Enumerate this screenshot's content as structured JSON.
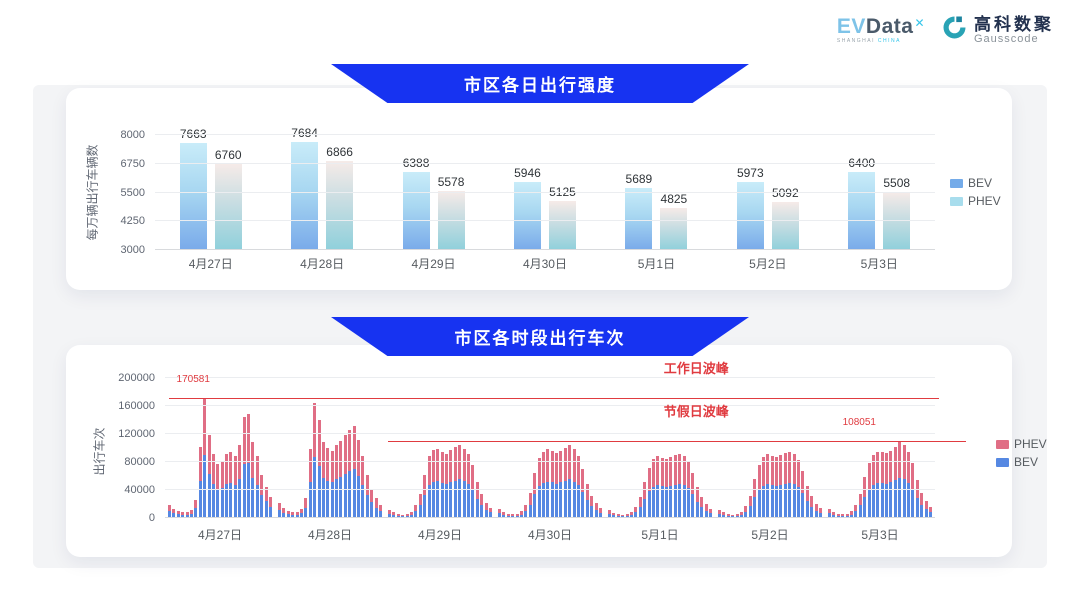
{
  "header": {
    "logo_evdata": {
      "ev": "EV",
      "data": "Data",
      "mark": "✕",
      "sub_left": "SHANGHAI",
      "sub_right": "CHINA"
    },
    "logo_gausscode": {
      "cn": "高科数聚",
      "en": "Gausscode"
    }
  },
  "colors": {
    "banner": "#1733f1",
    "chart1_bev_top": "#c9ecf9",
    "chart1_bev_bottom": "#79aaea",
    "chart1_phev_top": "#f6ebe8",
    "chart1_phev_bottom": "#8fd0db",
    "chart2_bev": "#5688e2",
    "chart2_phev": "#e06e85",
    "annotation_red": "#e03b40"
  },
  "chart_data": [
    {
      "type": "bar",
      "title": "市区各日出行强度",
      "ylabel": "每万辆出行车辆数",
      "ylim": [
        3000,
        8000
      ],
      "yticks": [
        3000,
        4250,
        5500,
        6750,
        8000
      ],
      "grid": true,
      "legend_position": "right",
      "categories": [
        "4月27日",
        "4月28日",
        "4月29日",
        "4月30日",
        "5月1日",
        "5月2日",
        "5月3日"
      ],
      "series": [
        {
          "name": "BEV",
          "values": [
            7663,
            7684,
            6388,
            5946,
            5689,
            5973,
            6400
          ]
        },
        {
          "name": "PHEV",
          "values": [
            6760,
            6866,
            5578,
            5125,
            4825,
            5092,
            5508
          ]
        }
      ],
      "legend": [
        {
          "label": "BEV",
          "color": "#74abe9"
        },
        {
          "label": "PHEV",
          "color": "#a8dded"
        }
      ]
    },
    {
      "type": "bar",
      "stacked": true,
      "title": "市区各时段出行车次",
      "ylabel": "出行车次",
      "ylim": [
        0,
        200000
      ],
      "yticks": [
        0,
        40000,
        80000,
        120000,
        160000,
        200000
      ],
      "grid": true,
      "legend_position": "right",
      "categories": [
        "4月27日",
        "4月28日",
        "4月29日",
        "4月30日",
        "5月1日",
        "5月2日",
        "5月3日"
      ],
      "hours_per_day": 24,
      "bev_share_estimate": 0.53,
      "totals_by_day": [
        [
          18000,
          13000,
          10000,
          8000,
          9000,
          12000,
          26000,
          101000,
          170581,
          119000,
          92000,
          77000,
          82000,
          91000,
          95000,
          88000,
          105000,
          145000,
          149000,
          108000,
          89000,
          62000,
          45000,
          30000
        ],
        [
          22000,
          14000,
          10000,
          8000,
          9000,
          13000,
          28000,
          98000,
          165000,
          140000,
          108000,
          100000,
          96000,
          104000,
          110000,
          118000,
          126000,
          131000,
          112000,
          88000,
          62000,
          42000,
          28000,
          18000
        ],
        [
          12000,
          8000,
          6000,
          5000,
          6000,
          9000,
          18000,
          35000,
          62000,
          88000,
          97000,
          99000,
          95000,
          92000,
          97000,
          101000,
          105000,
          99000,
          92000,
          76000,
          52000,
          34000,
          22000,
          15000
        ],
        [
          13000,
          9000,
          6500,
          5500,
          6500,
          9500,
          19000,
          36000,
          64000,
          86000,
          95000,
          98000,
          96000,
          93000,
          96000,
          100000,
          104000,
          98000,
          88000,
          70000,
          48000,
          32000,
          21000,
          14000
        ],
        [
          11000,
          7500,
          5500,
          5000,
          6000,
          8500,
          16000,
          30000,
          52000,
          72000,
          84000,
          88000,
          86000,
          84000,
          87000,
          90000,
          92000,
          88000,
          80000,
          64000,
          44000,
          30000,
          20000,
          13000
        ],
        [
          12000,
          8000,
          6000,
          5000,
          6000,
          9000,
          17000,
          32000,
          56000,
          76000,
          87000,
          91000,
          89000,
          87000,
          90000,
          93000,
          95000,
          91000,
          83000,
          67000,
          46000,
          31000,
          20000,
          14000
        ],
        [
          13000,
          9000,
          6500,
          5500,
          6500,
          9500,
          18000,
          34000,
          58000,
          78000,
          90000,
          95000,
          94000,
          93000,
          96000,
          102000,
          108051,
          104000,
          94000,
          78000,
          54000,
          36000,
          24000,
          16000
        ]
      ],
      "annotations": {
        "workday_peak": {
          "label": "工作日波峰",
          "value": 170581,
          "value_label": "170581"
        },
        "holiday_peak": {
          "label": "节假日波峰",
          "value": 108051,
          "value_label": "108051"
        }
      },
      "legend": [
        {
          "label": "PHEV",
          "color": "#e06e85"
        },
        {
          "label": "BEV",
          "color": "#5688e2"
        }
      ]
    }
  ]
}
